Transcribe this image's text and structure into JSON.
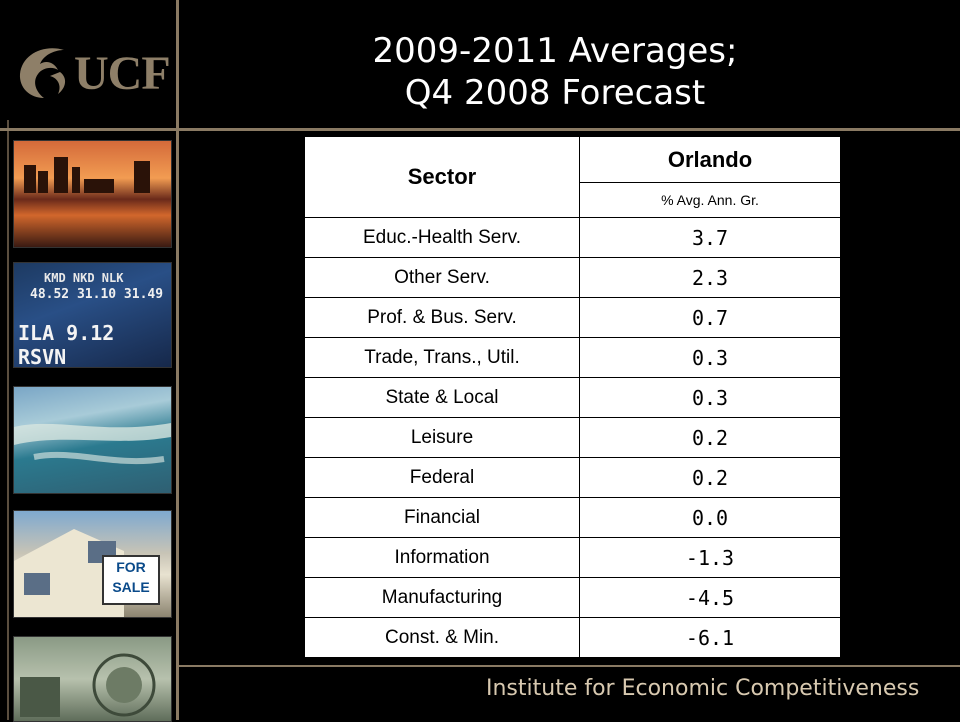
{
  "logo": {
    "text": "UCF"
  },
  "title": {
    "line1": "2009-2011 Averages;",
    "line2": "Q4 2008 Forecast"
  },
  "photos": {
    "stock_ticker": {
      "row1": "KMD  NKD  NLK",
      "row2": "48.52 31.10 31.49",
      "row3": "ILA 9.12  RSVN"
    },
    "sign": {
      "line1": "FOR",
      "line2": "SALE"
    }
  },
  "table": {
    "header_sector": "Sector",
    "header_region": "Orlando",
    "header_metric": "% Avg. Ann. Gr.",
    "rows": [
      {
        "sector": "Educ.-Health Serv.",
        "value": "3.7"
      },
      {
        "sector": "Other Serv.",
        "value": "2.3"
      },
      {
        "sector": "Prof. & Bus. Serv.",
        "value": "0.7"
      },
      {
        "sector": "Trade, Trans., Util.",
        "value": "0.3"
      },
      {
        "sector": "State & Local",
        "value": "0.3"
      },
      {
        "sector": "Leisure",
        "value": "0.2"
      },
      {
        "sector": "Federal",
        "value": "0.2"
      },
      {
        "sector": "Financial",
        "value": "0.0"
      },
      {
        "sector": "Information",
        "value": "-1.3"
      },
      {
        "sector": "Manufacturing",
        "value": "-4.5"
      },
      {
        "sector": "Const. & Min.",
        "value": "-6.1"
      }
    ]
  },
  "footer": {
    "text": "Institute for Economic Competitiveness"
  },
  "colors": {
    "background": "#000000",
    "accent": "#8a7a63",
    "footer_text": "#d8c9b0"
  }
}
